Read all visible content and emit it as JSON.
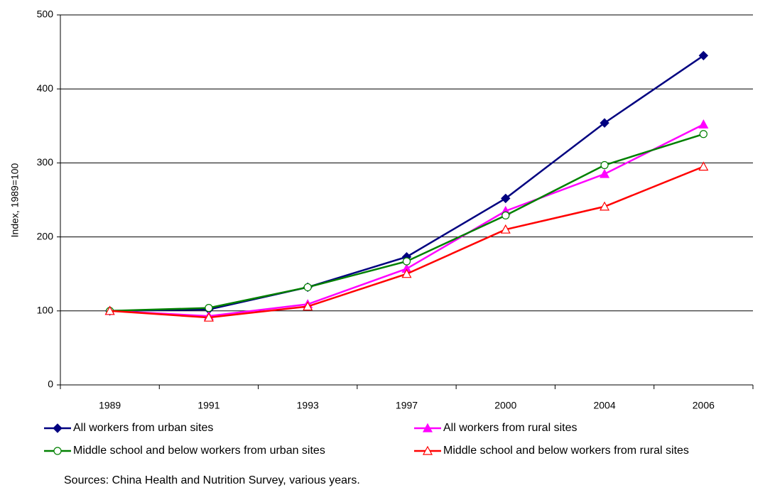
{
  "chart_data": {
    "type": "line",
    "y_label": "Index, 1989=100",
    "categories": [
      "1989",
      "1991",
      "1993",
      "1997",
      "2000",
      "2004",
      "2006"
    ],
    "series": [
      {
        "name": "All workers from urban sites",
        "color": "#000080",
        "marker": "diamond",
        "values": [
          100,
          102,
          132,
          173,
          252,
          354,
          445
        ]
      },
      {
        "name": "All workers from rural sites",
        "color": "#ff00ff",
        "marker": "triangle",
        "values": [
          100,
          93,
          109,
          157,
          235,
          285,
          352
        ]
      },
      {
        "name": "Middle school and below workers from urban sites",
        "color": "#008000",
        "marker": "circle-open",
        "values": [
          100,
          104,
          132,
          167,
          229,
          297,
          339
        ]
      },
      {
        "name": "Middle school and below workers from rural sites",
        "color": "#ff0000",
        "marker": "triangle-open",
        "values": [
          100,
          91,
          106,
          150,
          210,
          241,
          295
        ]
      }
    ],
    "ylim": [
      0,
      500
    ],
    "yticks": [
      0,
      100,
      200,
      300,
      400,
      500
    ],
    "grid": true,
    "note": "Sources:  China Health and Nutrition Survey, various years."
  }
}
